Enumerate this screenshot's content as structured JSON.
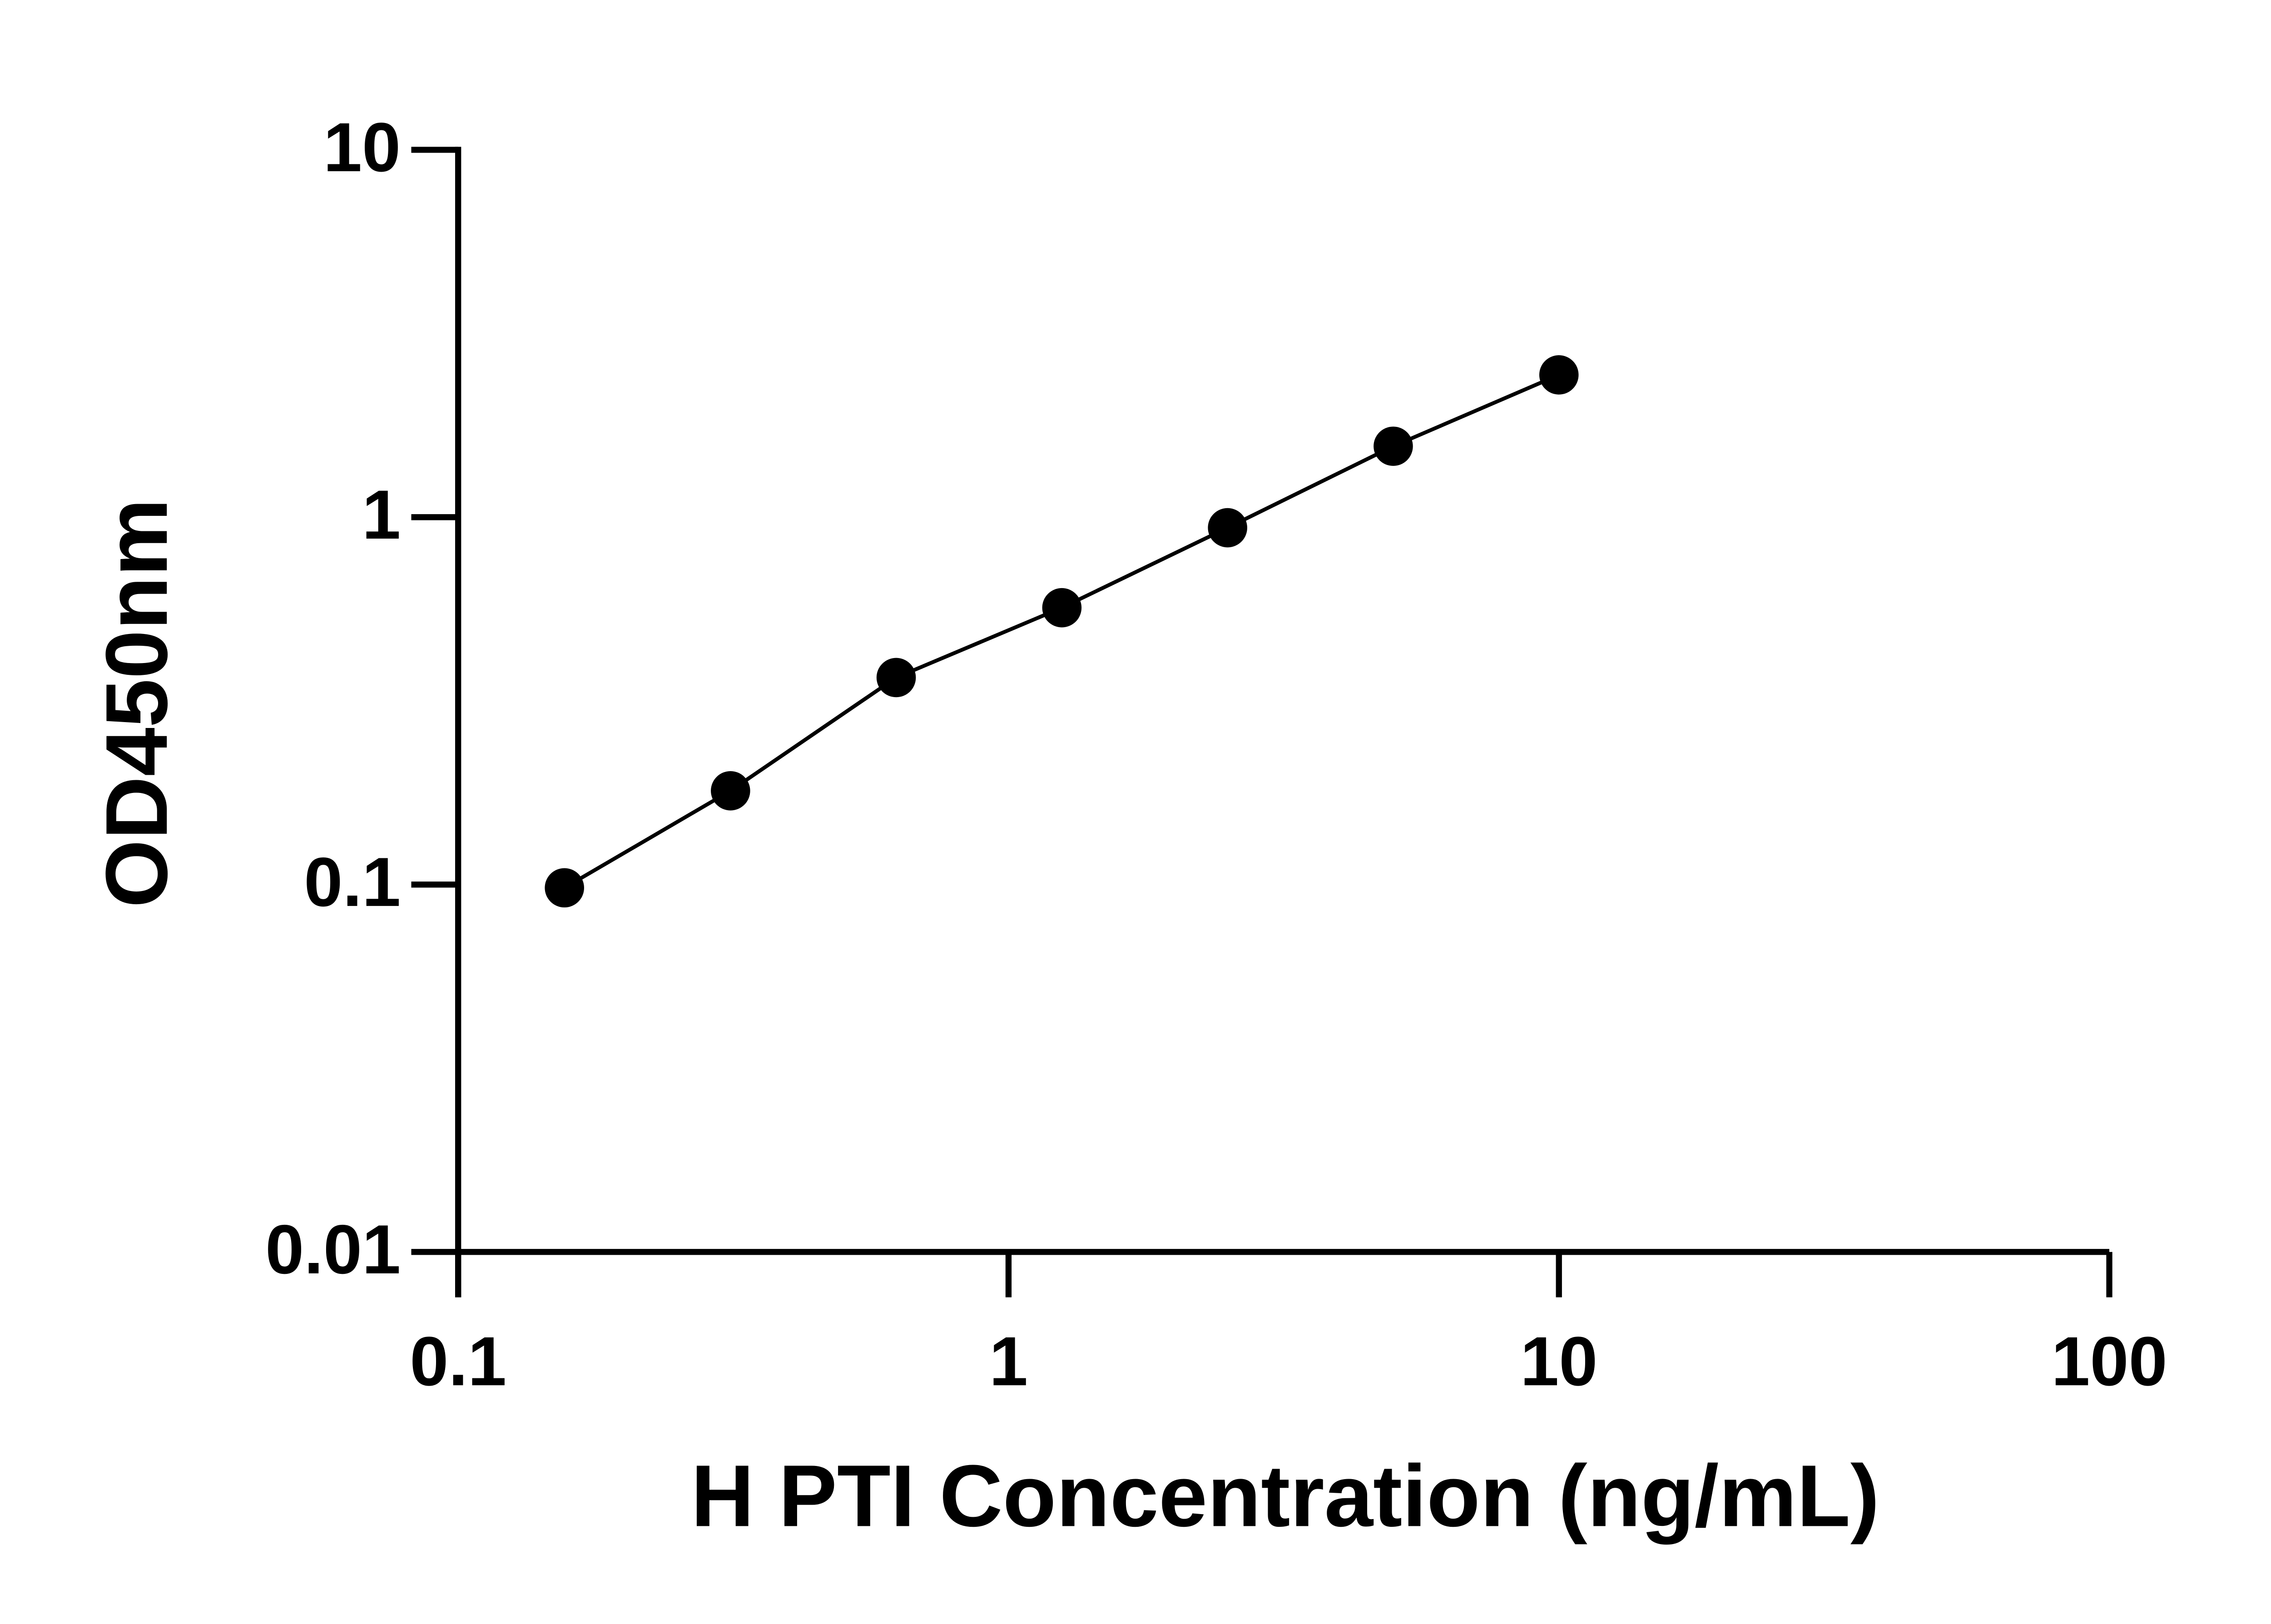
{
  "chart_data": {
    "type": "scatter",
    "xlabel": "H PTI Concentration (ng/mL)",
    "ylabel": "OD450nm",
    "x": [
      0.156,
      0.3125,
      0.625,
      1.25,
      2.5,
      5,
      10
    ],
    "series": [
      {
        "color": "#000000",
        "values": [
          0.098,
          0.18,
          0.366,
          0.567,
          0.936,
          1.56,
          2.44
        ]
      }
    ],
    "xlim": [
      0.1,
      100
    ],
    "ylim": [
      0.01,
      10
    ],
    "xticks": [
      0.1,
      1,
      10,
      100
    ],
    "yticks": [
      0.01,
      0.1,
      1,
      10
    ],
    "xscale": "log",
    "yscale": "log",
    "grid": false,
    "connect": true
  }
}
